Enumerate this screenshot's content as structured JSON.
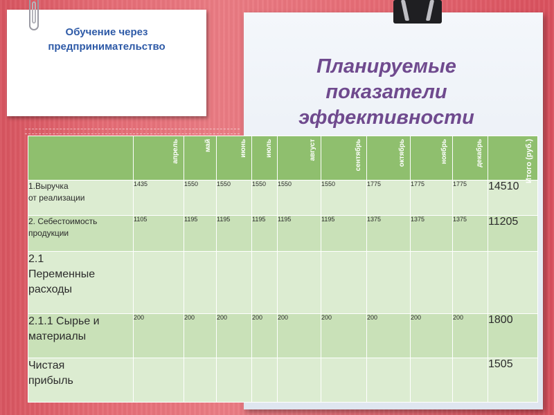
{
  "slide": {
    "subtitle_lines": [
      "Обучение через",
      "предпринимательство"
    ],
    "title_lines": [
      "Планируемые",
      "показатели",
      "эффективности"
    ]
  },
  "table": {
    "months": [
      "апрель",
      "май",
      "июнь",
      "июль",
      "август",
      "сентябрь",
      "октябрь",
      "ноябрь",
      "декабрь"
    ],
    "total_header": "Итого (руб.)",
    "rows": [
      {
        "label_lines": [
          "1.Выручка",
          "от реализации"
        ],
        "values": [
          "1435",
          "1550",
          "1550",
          "1550",
          "1550",
          "1550",
          "1775",
          "1775",
          "1775"
        ],
        "total": "14510"
      },
      {
        "label_lines": [
          "2. Себестоимость",
          "продукции"
        ],
        "values": [
          "1105",
          "1195",
          "1195",
          "1195",
          "1195",
          "1195",
          "1375",
          "1375",
          "1375"
        ],
        "total": "11205"
      },
      {
        "label_lines": [
          "2.1",
          "Переменные",
          "расходы"
        ],
        "values": [
          "",
          "",
          "",
          "",
          "",
          "",
          "",
          "",
          ""
        ],
        "total": ""
      },
      {
        "label_lines": [
          "2.1.1 Сырье и",
          "материалы"
        ],
        "values": [
          "200",
          "200",
          "200",
          "200",
          "200",
          "200",
          "200",
          "200",
          "200"
        ],
        "total": "1800"
      },
      {
        "label_lines": [
          "Чистая",
          "прибыль"
        ],
        "values": [
          "",
          "",
          "",
          "",
          "",
          "",
          "",
          "",
          ""
        ],
        "total": "1505"
      }
    ]
  },
  "colors": {
    "background": "#e46a73",
    "subtitle_text": "#2e5aa7",
    "title_text": "#6f4a8e",
    "table_header": "#8fbf6e",
    "table_row_light": "#dcecd1",
    "table_row_mid": "#c9e1b8"
  }
}
